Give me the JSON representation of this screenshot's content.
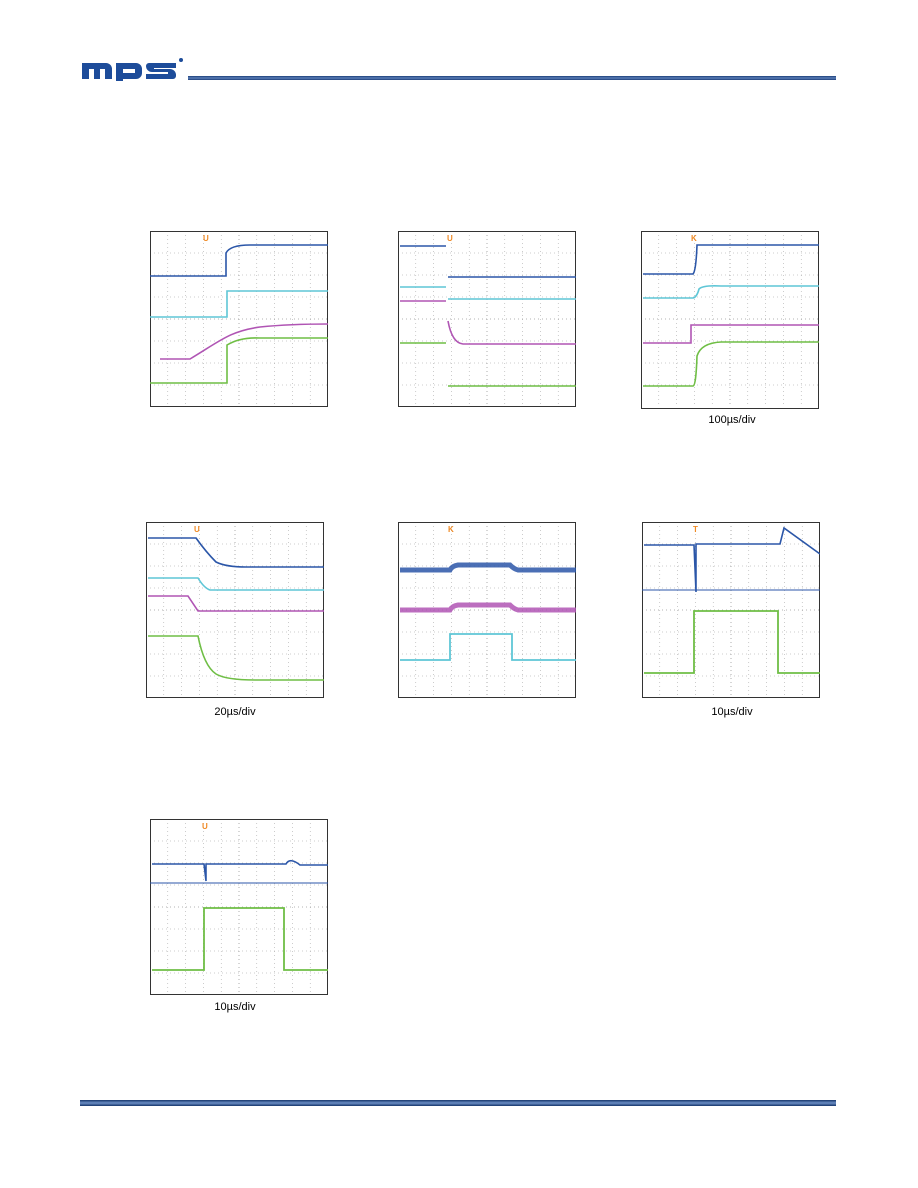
{
  "header": {
    "logo_text": "mps"
  },
  "captions": {
    "cap3": "100µs/div",
    "cap4": "20µs/div",
    "cap6": "10µs/div",
    "cap7": "10µs/div"
  },
  "colors": {
    "ch1": "#2b56a8",
    "ch2": "#5fc6d6",
    "ch3": "#b055b4",
    "ch4": "#6fbe45",
    "trigger": "#f08a24",
    "grid": "#9a9a9a",
    "frame": "#333333"
  }
}
